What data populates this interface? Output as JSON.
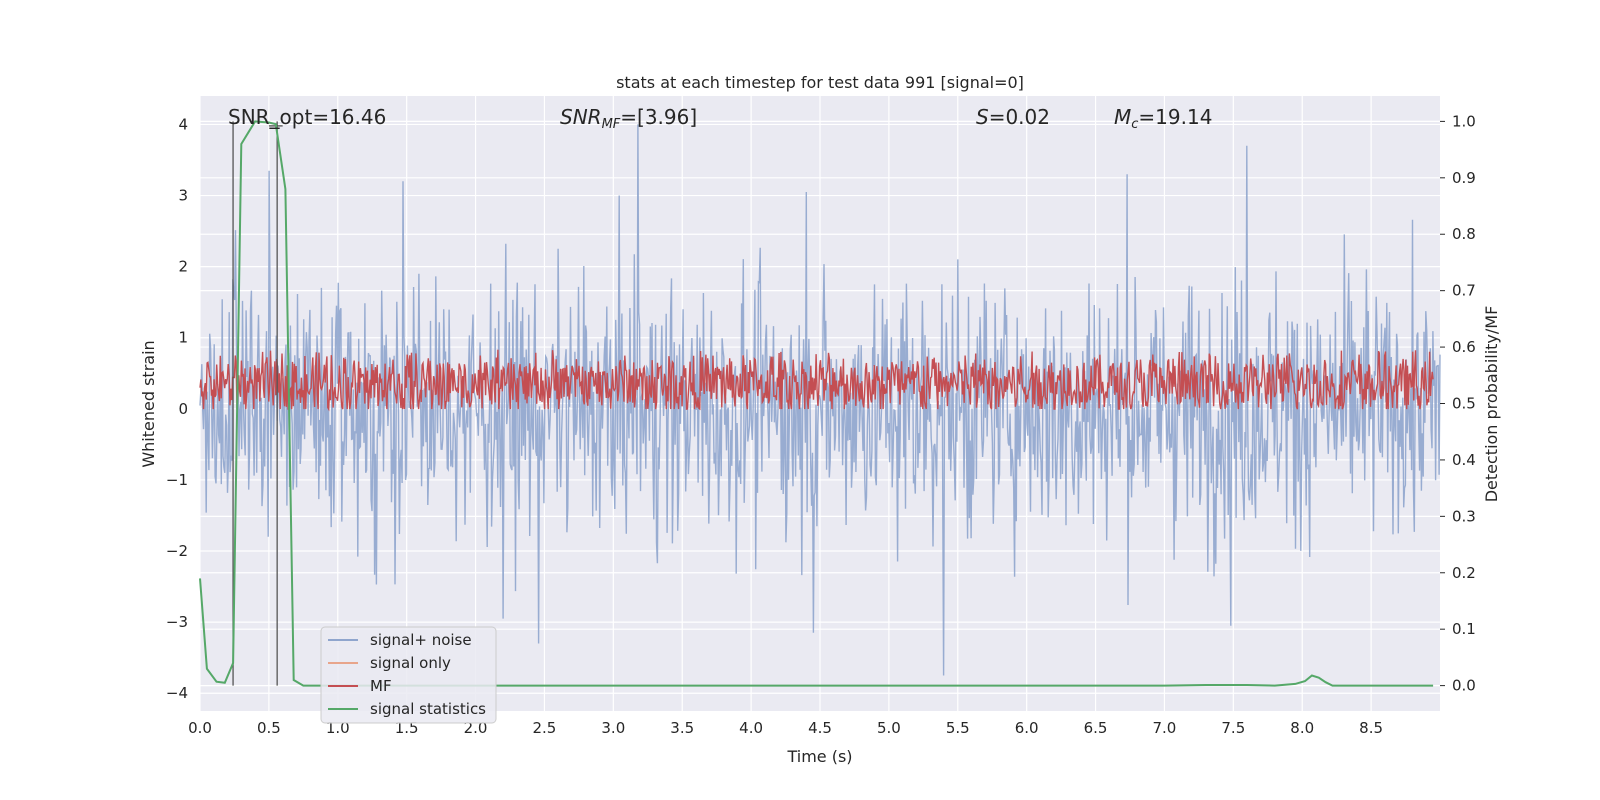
{
  "chart_data": {
    "type": "line",
    "title": "stats at each timestep for test data 991 [signal=0]",
    "xlabel": "Time (s)",
    "ylabel": "Whitened strain",
    "y2label": "Detection probability/MF",
    "xlim": [
      0.0,
      9.0
    ],
    "ylim": [
      -4.25,
      4.4
    ],
    "y2lim": [
      -0.045,
      1.045
    ],
    "xticks": [
      "0.0",
      "0.5",
      "1.0",
      "1.5",
      "2.0",
      "2.5",
      "3.0",
      "3.5",
      "4.0",
      "4.5",
      "5.0",
      "5.5",
      "6.0",
      "6.5",
      "7.0",
      "7.5",
      "8.0",
      "8.5"
    ],
    "yticks": [
      "−4",
      "−3",
      "−2",
      "−1",
      "0",
      "1",
      "2",
      "3",
      "4"
    ],
    "y2ticks": [
      "0.0",
      "0.1",
      "0.2",
      "0.3",
      "0.4",
      "0.5",
      "0.6",
      "0.7",
      "0.8",
      "0.9",
      "1.0"
    ],
    "annotations": {
      "snr_opt": "SNR_opt=16.46",
      "snr_mf_sym": "SNR",
      "snr_mf_sub": "MF",
      "snr_mf_rest": "=[3.96]",
      "s_sym": "S",
      "s_rest": "=0.02",
      "mc_sym": "M",
      "mc_sub": "c",
      "mc_rest": "=19.14"
    },
    "vlines": [
      0.24,
      0.56
    ],
    "series": [
      {
        "name": "signal+ noise",
        "axis": "left",
        "color": "#8fa5cd",
        "description": "noise band approx ±1.6 with spikes; notable peaks",
        "peaks_pos": [
          [
            0.5,
            3.35
          ],
          [
            1.47,
            3.2
          ],
          [
            3.18,
            4.0
          ],
          [
            7.6,
            3.7
          ],
          [
            6.73,
            3.3
          ],
          [
            4.4,
            3.05
          ]
        ],
        "peaks_neg": [
          [
            5.4,
            -3.75
          ],
          [
            2.46,
            -3.3
          ],
          [
            4.45,
            -3.15
          ],
          [
            7.48,
            -3.05
          ],
          [
            2.2,
            -2.95
          ]
        ]
      },
      {
        "name": "signal only",
        "axis": "left",
        "color": "#e8a58b",
        "values": []
      },
      {
        "name": "MF",
        "axis": "right",
        "color": "#c44e52",
        "description": "fluctuates between about 0.49 and 0.62"
      },
      {
        "name": "signal statistics",
        "axis": "right",
        "color": "#55a868",
        "x": [
          0.0,
          0.05,
          0.12,
          0.18,
          0.24,
          0.3,
          0.35,
          0.4,
          0.45,
          0.5,
          0.55,
          0.62,
          0.68,
          0.75,
          0.85,
          1.0,
          2.0,
          3.0,
          4.0,
          5.0,
          6.0,
          7.0,
          7.3,
          7.6,
          7.8,
          7.95,
          8.02,
          8.07,
          8.12,
          8.17,
          8.22,
          8.5,
          8.95
        ],
        "y": [
          0.19,
          0.03,
          0.007,
          0.005,
          0.04,
          0.96,
          0.98,
          1.0,
          0.999,
          0.998,
          0.995,
          0.88,
          0.01,
          0.0,
          0.0,
          0.0,
          0.0,
          0.0,
          0.0,
          0.0,
          0.0,
          0.0,
          0.001,
          0.001,
          0.0,
          0.003,
          0.008,
          0.018,
          0.014,
          0.006,
          0.0,
          0.0,
          0.0
        ]
      }
    ],
    "legend": {
      "placement": "lower-left",
      "entries": [
        "signal+ noise",
        "signal only",
        "MF",
        "signal statistics"
      ]
    }
  }
}
